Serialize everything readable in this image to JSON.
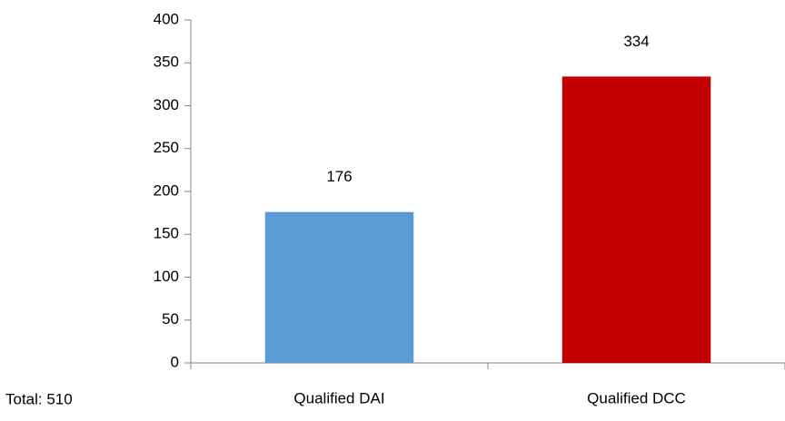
{
  "chart_data": {
    "type": "bar",
    "categories": [
      "Qualified DAI",
      "Qualified DCC"
    ],
    "values": [
      176,
      334
    ],
    "colors": [
      "#5b9bd5",
      "#c00000"
    ],
    "ylim": [
      0,
      400
    ],
    "yticks": [
      0,
      50,
      100,
      150,
      200,
      250,
      300,
      350,
      400
    ],
    "grid": false,
    "annotation": "Total: 510"
  }
}
